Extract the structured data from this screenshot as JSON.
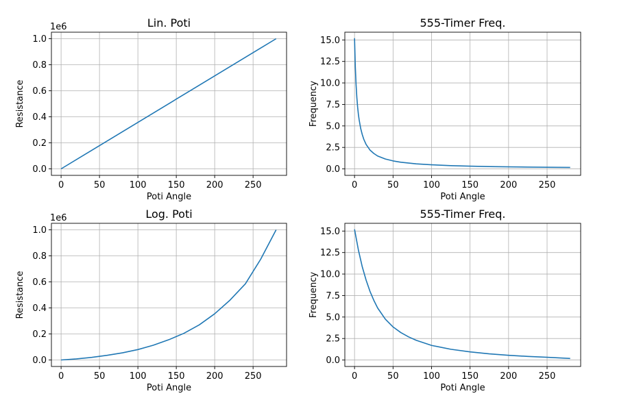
{
  "figure": {
    "background": "#ffffff",
    "line_color": "#1f77b4",
    "grid_color": "#b0b0b0"
  },
  "chart_data": [
    {
      "type": "line",
      "title": "Lin. Poti",
      "xlabel": "Poti Angle",
      "ylabel": "Resistance",
      "offset_text": "1e6",
      "xlim": [
        -12.6,
        293.6
      ],
      "ylim": [
        -0.05,
        1.05
      ],
      "xticks": [
        0,
        50,
        100,
        150,
        200,
        250
      ],
      "xtick_labels": [
        "0",
        "50",
        "100",
        "150",
        "200",
        "250"
      ],
      "yticks": [
        0,
        0.2,
        0.4,
        0.6,
        0.8,
        1.0
      ],
      "ytick_labels": [
        "0.0",
        "0.2",
        "0.4",
        "0.6",
        "0.8",
        "1.0"
      ],
      "grid": true,
      "series": [
        {
          "x": [
            0,
            280
          ],
          "y": [
            0,
            1.0
          ]
        }
      ]
    },
    {
      "type": "line",
      "title": "555-Timer Freq.",
      "xlabel": "Poti Angle",
      "ylabel": "Frequency",
      "offset_text": "",
      "xlim": [
        -12.6,
        293.6
      ],
      "ylim": [
        -0.75,
        15.9
      ],
      "xticks": [
        0,
        50,
        100,
        150,
        200,
        250
      ],
      "xtick_labels": [
        "0",
        "50",
        "100",
        "150",
        "200",
        "250"
      ],
      "yticks": [
        0,
        2.5,
        5.0,
        7.5,
        10.0,
        12.5,
        15.0
      ],
      "ytick_labels": [
        "0.0",
        "2.5",
        "5.0",
        "7.5",
        "10.0",
        "12.5",
        "15.0"
      ],
      "grid": true,
      "series": [
        {
          "x": [
            0,
            1,
            2,
            3,
            4,
            5,
            6,
            8,
            10,
            12,
            15,
            20,
            25,
            30,
            40,
            50,
            60,
            80,
            100,
            125,
            150,
            175,
            200,
            225,
            250,
            280
          ],
          "y": [
            15.2,
            11.9,
            9.8,
            8.3,
            7.2,
            6.35,
            5.7,
            4.7,
            4.0,
            3.45,
            2.85,
            2.2,
            1.8,
            1.5,
            1.15,
            0.93,
            0.78,
            0.59,
            0.48,
            0.38,
            0.32,
            0.27,
            0.24,
            0.21,
            0.19,
            0.17
          ]
        }
      ]
    },
    {
      "type": "line",
      "title": "Log. Poti",
      "xlabel": "Poti Angle",
      "ylabel": "Resistance",
      "offset_text": "1e6",
      "xlim": [
        -12.6,
        293.6
      ],
      "ylim": [
        -0.05,
        1.05
      ],
      "xticks": [
        0,
        50,
        100,
        150,
        200,
        250
      ],
      "xtick_labels": [
        "0",
        "50",
        "100",
        "150",
        "200",
        "250"
      ],
      "yticks": [
        0,
        0.2,
        0.4,
        0.6,
        0.8,
        1.0
      ],
      "ytick_labels": [
        "0.0",
        "0.2",
        "0.4",
        "0.6",
        "0.8",
        "1.0"
      ],
      "grid": true,
      "series": [
        {
          "x": [
            0,
            20,
            40,
            60,
            80,
            100,
            120,
            140,
            160,
            180,
            200,
            220,
            240,
            260,
            280
          ],
          "y": [
            0.0,
            0.008,
            0.02,
            0.036,
            0.055,
            0.08,
            0.113,
            0.155,
            0.205,
            0.27,
            0.355,
            0.46,
            0.585,
            0.775,
            1.0
          ]
        }
      ]
    },
    {
      "type": "line",
      "title": "555-Timer Freq.",
      "xlabel": "Poti Angle",
      "ylabel": "Frequency",
      "offset_text": "",
      "xlim": [
        -12.6,
        293.6
      ],
      "ylim": [
        -0.75,
        15.9
      ],
      "xticks": [
        0,
        50,
        100,
        150,
        200,
        250
      ],
      "xtick_labels": [
        "0",
        "50",
        "100",
        "150",
        "200",
        "250"
      ],
      "yticks": [
        0,
        2.5,
        5.0,
        7.5,
        10.0,
        12.5,
        15.0
      ],
      "ytick_labels": [
        "0.0",
        "2.5",
        "5.0",
        "7.5",
        "10.0",
        "12.5",
        "15.0"
      ],
      "grid": true,
      "series": [
        {
          "x": [
            0,
            5,
            10,
            15,
            20,
            25,
            30,
            40,
            50,
            60,
            70,
            80,
            100,
            125,
            150,
            175,
            200,
            225,
            250,
            280
          ],
          "y": [
            15.2,
            12.8,
            10.85,
            9.3,
            8.0,
            6.95,
            6.05,
            4.75,
            3.85,
            3.2,
            2.7,
            2.3,
            1.7,
            1.25,
            0.95,
            0.72,
            0.55,
            0.42,
            0.32,
            0.18
          ]
        }
      ]
    }
  ]
}
